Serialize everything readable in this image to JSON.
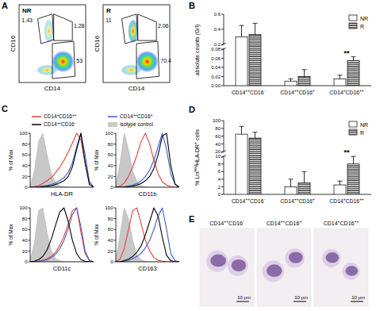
{
  "chart_data": [
    {
      "type": "density",
      "panel": "A",
      "x_label": "CD14",
      "y_label": "CD16",
      "tick_labels": false,
      "data_labels": true,
      "plots": [
        {
          "title": "NR",
          "values": [
            1.43,
            1.28,
            53
          ]
        },
        {
          "title": "R",
          "values": [
            11,
            2.06,
            70.4
          ]
        }
      ]
    },
    {
      "type": "bar",
      "panel": "B",
      "y_label": "absolute counts (G/l)",
      "categories": [
        "CD14++CD16-",
        "CD14++CD16+",
        "CD14+CD16++"
      ],
      "series": [
        {
          "name": "NR",
          "color": "#ffffff",
          "marker": "solid",
          "values": [
            0.3,
            0.01,
            0.015
          ],
          "errors": [
            0.15,
            0.005,
            0.008
          ]
        },
        {
          "name": "R",
          "color": "#ffffff",
          "marker": "hatched",
          "values": [
            0.33,
            0.02,
            0.055
          ],
          "errors": [
            0.15,
            0.015,
            0.008
          ]
        }
      ],
      "significance": [
        null,
        null,
        "**"
      ],
      "ylim": [
        0,
        0.6
      ],
      "yticks": [
        {
          "value": 0,
          "label": "0.00"
        },
        0.02,
        0.04,
        0.06,
        0.08,
        0.2,
        0.4,
        0.6
      ],
      "legend": "top-right"
    },
    {
      "type": "line",
      "panel": "C",
      "y_label": "% of Max",
      "tick_labels": "y",
      "legend": "top",
      "x": [
        0,
        1,
        2,
        3,
        4,
        5,
        6,
        7,
        8,
        9,
        10,
        11,
        12,
        13,
        14,
        15
      ],
      "xlim": [
        0,
        15
      ],
      "ylim": [
        0,
        100
      ],
      "yticks": [
        0,
        20,
        40,
        60,
        80,
        100
      ],
      "series": [
        {
          "name": "CD14+CD16++",
          "color": "#e8413c",
          "type": "line"
        },
        {
          "name": "CD14++CD16+",
          "color": "#3a5fcd",
          "type": "line"
        },
        {
          "name": "CD14++CD16-",
          "color": "#000000",
          "type": "line"
        },
        {
          "name": "isotype control",
          "color": "#c8c8c8",
          "type": "area"
        }
      ],
      "plots": [
        {
          "title": "HLA-DR",
          "values": [
            [
              0,
              1,
              3,
              7,
              12,
              18,
              27,
              37,
              50,
              65,
              82,
              100,
              88,
              45,
              10,
              0
            ],
            [
              0,
              0,
              1,
              2,
              3,
              5,
              8,
              12,
              18,
              28,
              45,
              75,
              100,
              60,
              10,
              0
            ],
            [
              0,
              0,
              0,
              1,
              2,
              3,
              5,
              8,
              12,
              20,
              38,
              70,
              100,
              45,
              5,
              0
            ],
            [
              2,
              30,
              85,
              100,
              60,
              25,
              8,
              3,
              1,
              0,
              0,
              0,
              0,
              0,
              0,
              0
            ]
          ]
        },
        {
          "title": "CD11b",
          "values": [
            [
              0,
              2,
              8,
              20,
              38,
              60,
              85,
              100,
              80,
              50,
              25,
              10,
              4,
              1,
              0,
              0
            ],
            [
              0,
              0,
              1,
              2,
              4,
              7,
              12,
              20,
              32,
              50,
              75,
              100,
              70,
              25,
              5,
              0
            ],
            [
              0,
              0,
              0,
              1,
              2,
              4,
              7,
              12,
              20,
              35,
              60,
              95,
              100,
              40,
              6,
              0
            ],
            [
              5,
              45,
              100,
              70,
              30,
              10,
              3,
              1,
              0,
              0,
              0,
              0,
              0,
              0,
              0,
              0
            ]
          ]
        },
        {
          "title": "CD11c",
          "values": [
            [
              0,
              0,
              1,
              3,
              6,
              10,
              18,
              30,
              48,
              70,
              95,
              100,
              55,
              15,
              2,
              0
            ],
            [
              0,
              0,
              1,
              2,
              4,
              8,
              14,
              24,
              40,
              62,
              88,
              100,
              65,
              20,
              3,
              0
            ],
            [
              0,
              1,
              4,
              10,
              22,
              42,
              68,
              92,
              100,
              75,
              40,
              15,
              4,
              1,
              0,
              0
            ],
            [
              3,
              35,
              95,
              100,
              55,
              20,
              6,
              2,
              0,
              0,
              0,
              0,
              0,
              0,
              0,
              0
            ]
          ]
        },
        {
          "title": "CD163",
          "values": [
            [
              0,
              5,
              25,
              60,
              95,
              100,
              70,
              40,
              20,
              8,
              3,
              1,
              0,
              0,
              0,
              0
            ],
            [
              0,
              0,
              1,
              3,
              6,
              10,
              16,
              26,
              40,
              60,
              85,
              100,
              60,
              15,
              2,
              0
            ],
            [
              0,
              0,
              2,
              5,
              10,
              18,
              30,
              50,
              75,
              100,
              85,
              45,
              12,
              2,
              0,
              0
            ],
            [
              5,
              50,
              100,
              80,
              40,
              12,
              4,
              1,
              0,
              0,
              0,
              0,
              0,
              0,
              0,
              0
            ]
          ]
        }
      ]
    },
    {
      "type": "bar",
      "panel": "D",
      "y_label": "% LinnegHLA-DR+ cells",
      "categories": [
        "CD14++CD16-",
        "CD14++CD16+",
        "CD14+CD16++"
      ],
      "series": [
        {
          "name": "NR",
          "color": "#ffffff",
          "marker": "solid",
          "values": [
            65,
            2,
            2.5
          ],
          "errors": [
            20,
            2,
            1
          ]
        },
        {
          "name": "R",
          "color": "#ffffff",
          "marker": "hatched",
          "values": [
            55,
            3,
            8
          ],
          "errors": [
            15,
            3,
            2
          ]
        }
      ],
      "significance": [
        null,
        null,
        "**"
      ],
      "ylim": [
        0,
        100
      ],
      "yticks": [
        0,
        2,
        4,
        6,
        8,
        10,
        20,
        40,
        60,
        80,
        100
      ],
      "legend": "top-right"
    },
    {
      "type": "image",
      "panel": "E",
      "images": [
        {
          "title": "CD14++CD16-",
          "scale": "10 μm"
        },
        {
          "title": "CD14++CD16+",
          "scale": "10 μm"
        },
        {
          "title": "CD14+CD16++",
          "scale": "10 μm"
        }
      ]
    }
  ]
}
